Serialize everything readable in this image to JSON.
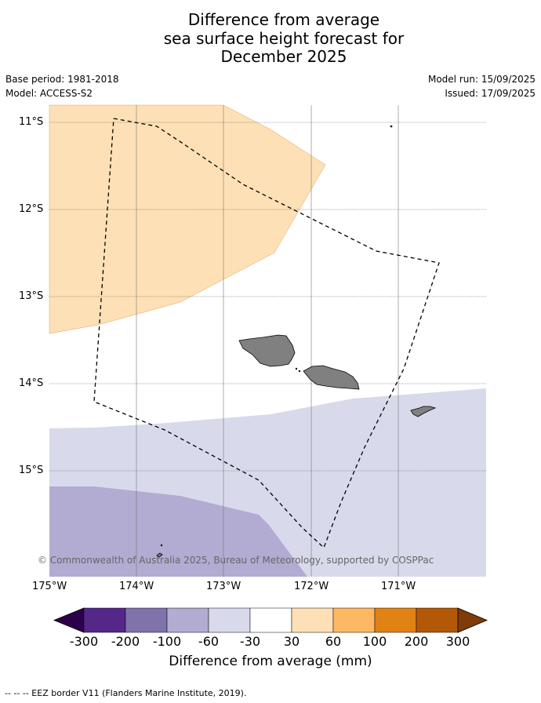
{
  "title_lines": [
    "Difference from average",
    "sea surface height forecast for",
    "December 2025"
  ],
  "base_period": "Base period: 1981-2018",
  "model": "Model: ACCESS-S2",
  "model_run": "Model run: 15/09/2025",
  "issued": "Issued: 17/09/2025",
  "lat_labels": [
    "11°S",
    "12°S",
    "13°S",
    "14°S",
    "15°S"
  ],
  "lon_labels": [
    "175°W",
    "174°W",
    "173°W",
    "172°W",
    "171°W"
  ],
  "copyright": "© Commonwealth of Australia 2025, Bureau of Meteorology, supported by COSPPac",
  "colorbar": {
    "label": "Difference from average (mm)",
    "ticks": [
      "-300",
      "-200",
      "-100",
      "-60",
      "-30",
      "30",
      "60",
      "100",
      "200",
      "300"
    ],
    "colors": [
      "#2d004b",
      "#542788",
      "#8073ac",
      "#b2abd2",
      "#d8daeb",
      "#ffffff",
      "#fee0b6",
      "#fdb863",
      "#e08214",
      "#b35806",
      "#7f3b08"
    ]
  },
  "footnote": "--  --  -- EEZ border V11 (Flanders Marine Institute, 2019).",
  "map_colors": {
    "positive_30_60": "#fee0b6",
    "negative_30_60": "#d8daeb",
    "negative_60_100": "#b2abd2",
    "land": "#808080"
  }
}
